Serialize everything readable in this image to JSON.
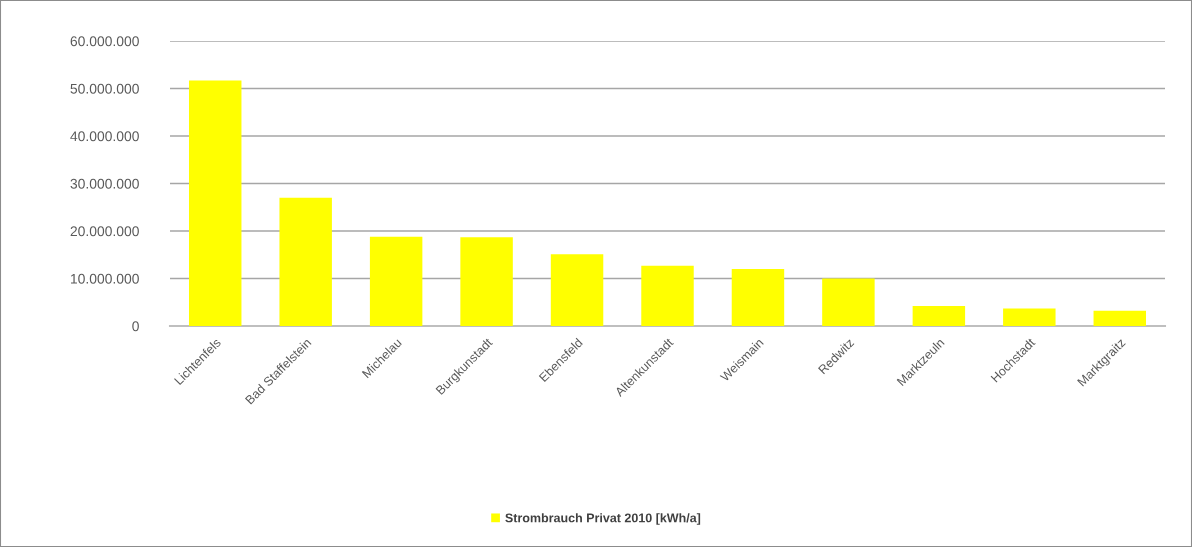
{
  "chart_data": {
    "type": "bar",
    "categories": [
      "Lichtenfels",
      "Bad Staffelstein",
      "Michelau",
      "Burgkunstadt",
      "Ebensfeld",
      "Altenkunstadt",
      "Weismain",
      "Redwitz",
      "Marktzeuln",
      "Hochstadt",
      "Marktgraitz"
    ],
    "series": [
      {
        "name": "Strombrauch Privat 2010 [kWh/a]",
        "color": "#ffff00",
        "values": [
          51700000,
          27000000,
          18800000,
          18700000,
          15100000,
          12700000,
          12000000,
          10000000,
          4200000,
          3700000,
          3200000
        ]
      }
    ],
    "ylim": [
      0,
      60000000
    ],
    "yticks": [
      0,
      {
        "value": 10000000,
        "label": "10.000.000"
      },
      {
        "value": 20000000,
        "label": "20.000.000"
      },
      {
        "value": 30000000,
        "label": "30.000.000"
      },
      {
        "value": 40000000,
        "label": "40.000.000"
      },
      {
        "value": 50000000,
        "label": "50.000.000"
      },
      {
        "value": 60000000,
        "label": "60.000.000"
      }
    ],
    "grid": "y",
    "legend": "bottom"
  }
}
